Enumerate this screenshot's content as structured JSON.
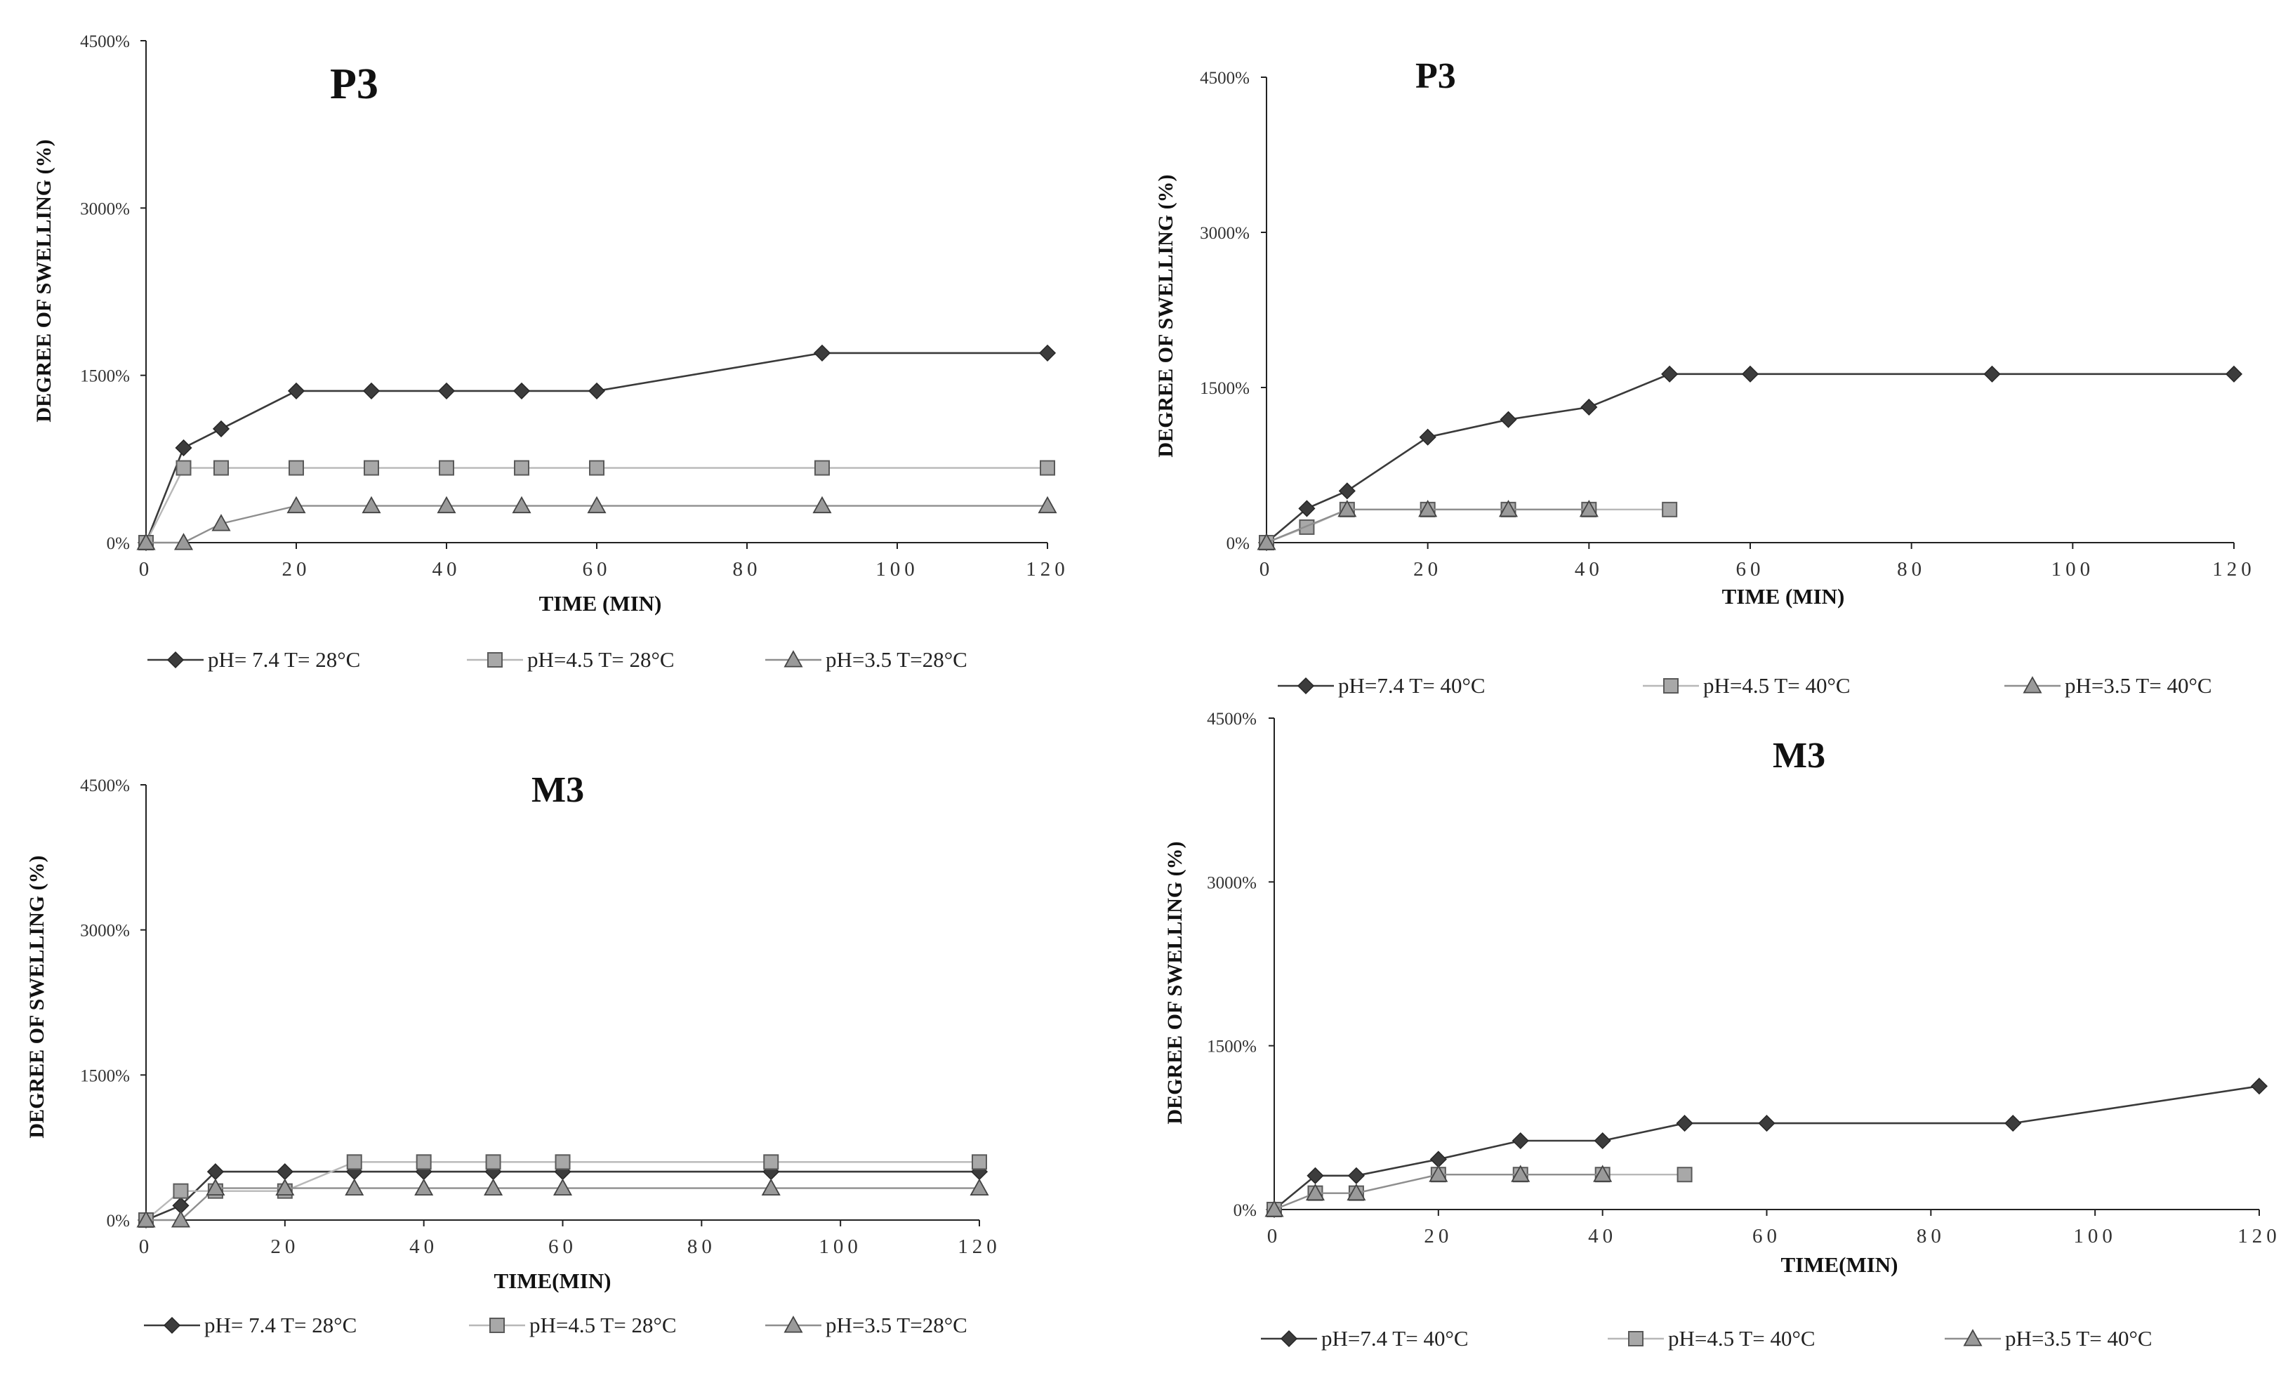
{
  "chart_data": [
    {
      "type": "line",
      "title": "P3",
      "xlabel": "TIME  (MIN)",
      "ylabel": "DEGREE   OF SWELLING  (%)",
      "xlim": [
        0,
        120
      ],
      "ylim": [
        0,
        45
      ],
      "xticks": [
        "0",
        "20",
        "40",
        "60",
        "80",
        "100",
        "120"
      ],
      "yticks": [
        "0%",
        "1500%",
        "3000%",
        "4500%"
      ],
      "series": [
        {
          "name": "pH= 7.4  T= 28°C",
          "marker": "diamond",
          "x": [
            0,
            5,
            10,
            20,
            30,
            40,
            50,
            60,
            90,
            120
          ],
          "values": [
            0,
            8.5,
            10.2,
            13.6,
            13.6,
            13.6,
            13.6,
            13.6,
            17,
            17
          ]
        },
        {
          "name": "pH=4.5 T= 28°C",
          "marker": "square",
          "x": [
            0,
            5,
            10,
            20,
            30,
            40,
            50,
            60,
            90,
            120
          ],
          "values": [
            0,
            6.7,
            6.7,
            6.7,
            6.7,
            6.7,
            6.7,
            6.7,
            6.7,
            6.7
          ]
        },
        {
          "name": "pH=3.5 T=28°C",
          "marker": "triangle",
          "x": [
            0,
            5,
            10,
            20,
            30,
            40,
            50,
            60,
            90,
            120
          ],
          "values": [
            0,
            0,
            1.7,
            3.3,
            3.3,
            3.3,
            3.3,
            3.3,
            3.3,
            3.3
          ]
        }
      ]
    },
    {
      "type": "line",
      "title": "P3",
      "xlabel": "TIME  (MIN)",
      "ylabel": "DEGREE   OF SWELLING  (%)",
      "xlim": [
        0,
        120
      ],
      "ylim": [
        0,
        45
      ],
      "xticks": [
        "0",
        "20",
        "40",
        "60",
        "80",
        "100",
        "120"
      ],
      "yticks": [
        "0%",
        "1500%",
        "3000%",
        "4500%"
      ],
      "series": [
        {
          "name": "pH=7.4  T= 40°C",
          "marker": "diamond",
          "x": [
            0,
            5,
            10,
            20,
            30,
            40,
            50,
            60,
            90,
            120
          ],
          "values": [
            0,
            3.3,
            5,
            10.2,
            11.9,
            13.1,
            16.3,
            16.3,
            16.3,
            16.3
          ]
        },
        {
          "name": "pH=4.5  T= 40°C",
          "marker": "square",
          "x": [
            0,
            5,
            10,
            20,
            30,
            40,
            50
          ],
          "values": [
            0,
            1.5,
            3.2,
            3.2,
            3.2,
            3.2,
            3.2
          ]
        },
        {
          "name": "pH=3.5  T= 40°C",
          "marker": "triangle",
          "x": [
            0,
            10,
            20,
            30,
            40
          ],
          "values": [
            0,
            3.2,
            3.2,
            3.2,
            3.2
          ]
        }
      ]
    },
    {
      "type": "line",
      "title": "M3",
      "xlabel": "TIME(MIN)",
      "ylabel": "DEGREE   OF SWELLING  (%)",
      "xlim": [
        0,
        120
      ],
      "ylim": [
        0,
        45
      ],
      "xticks": [
        "0",
        "20",
        "40",
        "60",
        "80",
        "100",
        "120"
      ],
      "yticks": [
        "0%",
        "1500%",
        "3000%",
        "4500%"
      ],
      "series": [
        {
          "name": "pH= 7.4  T= 28°C",
          "marker": "diamond",
          "x": [
            0,
            5,
            10,
            20,
            30,
            40,
            50,
            60,
            90,
            120
          ],
          "values": [
            0,
            1.5,
            5,
            5,
            5,
            5,
            5,
            5,
            5,
            5
          ]
        },
        {
          "name": "pH=4.5 T= 28°C",
          "marker": "square",
          "x": [
            0,
            5,
            10,
            20,
            30,
            40,
            50,
            60,
            90,
            120
          ],
          "values": [
            0,
            3,
            3,
            3,
            6,
            6,
            6,
            6,
            6,
            6
          ]
        },
        {
          "name": "pH=3.5 T=28°C",
          "marker": "triangle",
          "x": [
            0,
            5,
            10,
            20,
            30,
            40,
            50,
            60,
            90,
            120
          ],
          "values": [
            0,
            0,
            3.3,
            3.3,
            3.3,
            3.3,
            3.3,
            3.3,
            3.3,
            3.3
          ]
        }
      ]
    },
    {
      "type": "line",
      "title": "M3",
      "xlabel": "TIME(MIN)",
      "ylabel": "DEGREE  OF SWELLING  (%)",
      "xlim": [
        0,
        120
      ],
      "ylim": [
        0,
        45
      ],
      "xticks": [
        "0",
        "20",
        "40",
        "60",
        "80",
        "100",
        "120"
      ],
      "yticks": [
        "0%",
        "1500%",
        "3000%",
        "4500%"
      ],
      "series": [
        {
          "name": "pH=7.4  T= 40°C",
          "marker": "diamond",
          "x": [
            0,
            5,
            10,
            20,
            30,
            40,
            50,
            60,
            90,
            120
          ],
          "values": [
            0,
            3.1,
            3.1,
            4.6,
            6.3,
            6.3,
            7.9,
            7.9,
            7.9,
            11.3
          ]
        },
        {
          "name": "pH=4.5  T= 40°C",
          "marker": "square",
          "x": [
            0,
            5,
            10,
            20,
            30,
            40,
            50
          ],
          "values": [
            0,
            1.5,
            1.5,
            3.2,
            3.2,
            3.2,
            3.2
          ]
        },
        {
          "name": "pH=3.5  T= 40°C",
          "marker": "triangle",
          "x": [
            0,
            5,
            10,
            20,
            30,
            40
          ],
          "values": [
            0,
            1.5,
            1.5,
            3.2,
            3.2,
            3.2
          ]
        }
      ]
    }
  ]
}
